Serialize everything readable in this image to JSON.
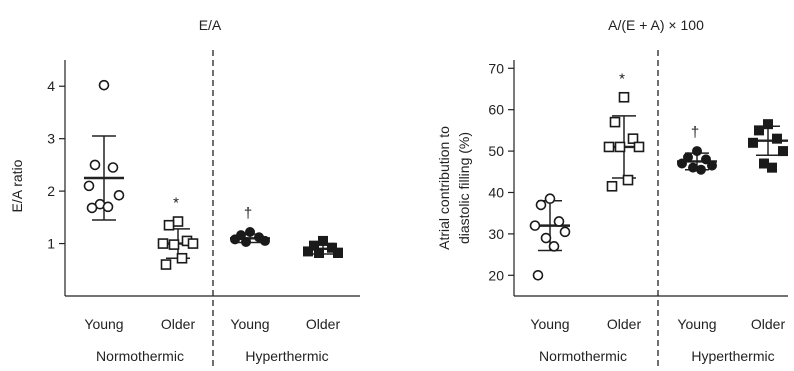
{
  "chart_data": [
    {
      "type": "scatter",
      "title": "E/A",
      "ylabel": "E/A ratio",
      "ylim": [
        0,
        4.5
      ],
      "yticks": [
        1,
        2,
        3,
        4
      ],
      "categories": [
        "Young",
        "Older",
        "Young",
        "Older"
      ],
      "groups": [
        "Normothermic",
        "Hyperthermic"
      ],
      "series": [
        {
          "category": "Young",
          "group": "Normothermic",
          "marker": "open-circle",
          "points": [
            4.02,
            2.5,
            2.45,
            2.1,
            1.92,
            1.75,
            1.7,
            1.68
          ],
          "mean": 2.25,
          "sd_low": 1.45,
          "sd_high": 3.05,
          "annotation": ""
        },
        {
          "category": "Older",
          "group": "Normothermic",
          "marker": "open-square",
          "points": [
            1.42,
            1.35,
            1.05,
            1.0,
            1.0,
            0.98,
            0.72,
            0.6
          ],
          "mean": 1.0,
          "sd_low": 0.72,
          "sd_high": 1.28,
          "annotation": "*"
        },
        {
          "category": "Young",
          "group": "Hyperthermic",
          "marker": "filled-circle",
          "points": [
            1.22,
            1.16,
            1.12,
            1.08,
            1.05,
            1.03
          ],
          "mean": 1.1,
          "sd_low": 1.02,
          "sd_high": 1.18,
          "annotation": "†"
        },
        {
          "category": "Older",
          "group": "Hyperthermic",
          "marker": "filled-square",
          "points": [
            1.05,
            0.96,
            0.92,
            0.85,
            0.82,
            0.82
          ],
          "mean": 0.9,
          "sd_low": 0.8,
          "sd_high": 1.0,
          "annotation": ""
        }
      ]
    },
    {
      "type": "scatter",
      "title": "A/(E + A) × 100",
      "ylabel_line1": "Atrial contribution to",
      "ylabel_line2": "diastolic filling (%)",
      "ylim": [
        15,
        72
      ],
      "yticks": [
        20,
        30,
        40,
        50,
        60,
        70
      ],
      "categories": [
        "Young",
        "Older",
        "Young",
        "Older"
      ],
      "groups": [
        "Normothermic",
        "Hyperthermic"
      ],
      "series": [
        {
          "category": "Young",
          "group": "Normothermic",
          "marker": "open-circle",
          "points": [
            38.5,
            37,
            33,
            32,
            30.5,
            29,
            27,
            20
          ],
          "mean": 32,
          "sd_low": 26,
          "sd_high": 38,
          "annotation": ""
        },
        {
          "category": "Older",
          "group": "Normothermic",
          "marker": "open-square",
          "points": [
            63,
            57,
            53,
            51,
            51,
            51,
            43,
            41.5
          ],
          "mean": 51,
          "sd_low": 43.5,
          "sd_high": 58.5,
          "annotation": "*"
        },
        {
          "category": "Young",
          "group": "Hyperthermic",
          "marker": "filled-circle",
          "points": [
            50,
            48.5,
            48,
            47,
            46.5,
            46,
            45.5
          ],
          "mean": 47.5,
          "sd_low": 45.5,
          "sd_high": 49.5,
          "annotation": "†"
        },
        {
          "category": "Older",
          "group": "Hyperthermic",
          "marker": "filled-square",
          "points": [
            56.5,
            55,
            53,
            52,
            50,
            47,
            46
          ],
          "mean": 52.5,
          "sd_low": 49,
          "sd_high": 56,
          "annotation": ""
        }
      ]
    }
  ]
}
